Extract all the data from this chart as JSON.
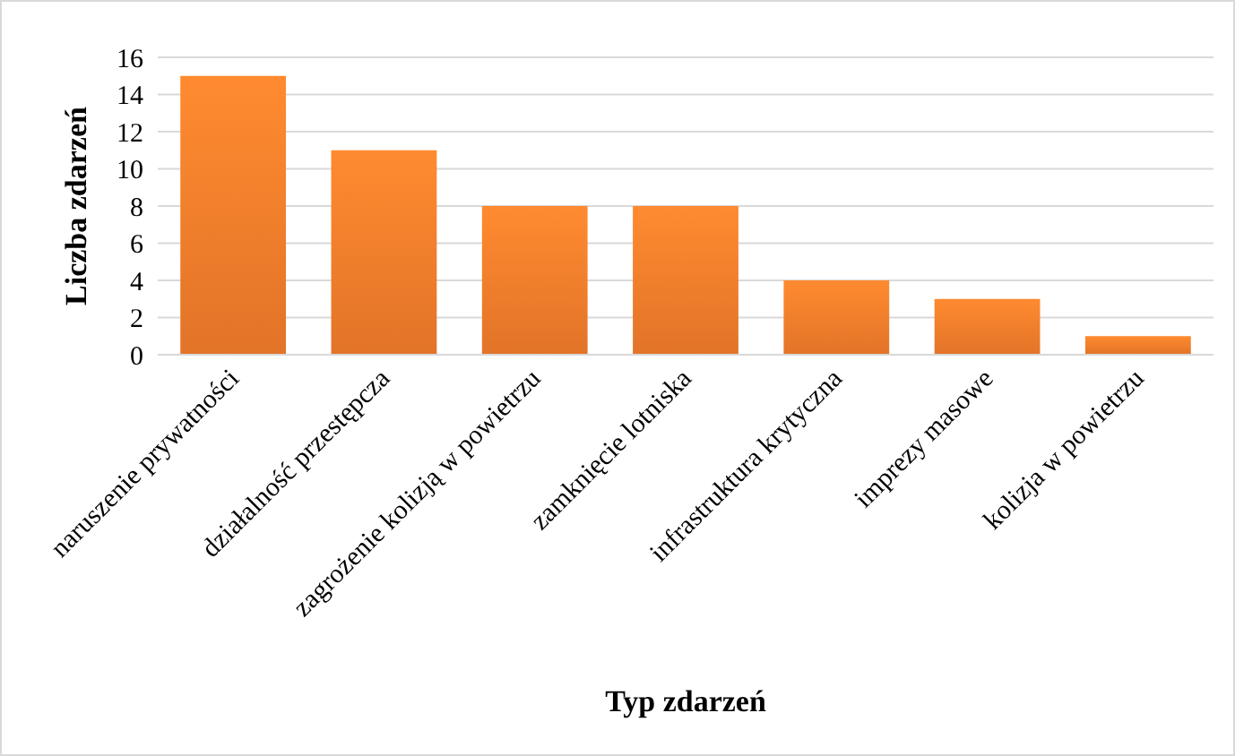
{
  "chart_data": {
    "type": "bar",
    "xlabel": "Typ zdarzeń",
    "ylabel": "Liczba zdarzeń",
    "categories": [
      "naruszenie prywatności",
      "działalność przestępcza",
      "zagrożenie kolizją w powietrzu",
      "zamknięcie lotniska",
      "infrastruktura krytyczna",
      "imprezy masowe",
      "kolizja w powietrzu"
    ],
    "values": [
      15,
      11,
      8,
      8,
      4,
      3,
      1
    ],
    "color": "#ee7a2a",
    "ylim": [
      0,
      16
    ],
    "yticks": [
      0,
      2,
      4,
      6,
      8,
      10,
      12,
      14,
      16
    ],
    "grid": "y"
  }
}
